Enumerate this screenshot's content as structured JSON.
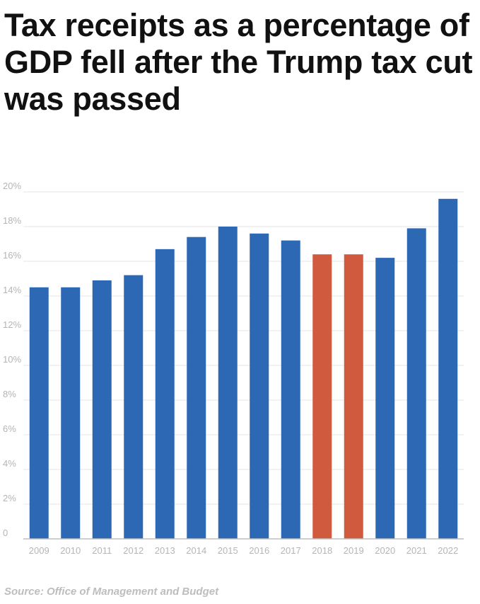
{
  "title": "Tax receipts as a percentage of GDP fell after the Trump tax cut was passed",
  "source": "Source: Office of Management and Budget",
  "colors": {
    "default_bar": "#2d68b5",
    "highlight_bar": "#d05a3e",
    "grid": "#e6e6e6",
    "axis": "#bfbfbf",
    "tick_text": "#b5b5b5"
  },
  "chart_data": {
    "type": "bar",
    "title": "Tax receipts as a percentage of GDP fell after the Trump tax cut was passed",
    "xlabel": "",
    "ylabel": "",
    "categories": [
      "2009",
      "2010",
      "2011",
      "2012",
      "2013",
      "2014",
      "2015",
      "2016",
      "2017",
      "2018",
      "2019",
      "2020",
      "2021",
      "2022"
    ],
    "values": [
      14.5,
      14.5,
      14.9,
      15.2,
      16.7,
      17.4,
      18.0,
      17.6,
      17.2,
      16.4,
      16.4,
      16.2,
      17.9,
      19.6
    ],
    "highlighted": [
      "2018",
      "2019"
    ],
    "ylim": [
      0,
      20
    ],
    "yticks": [
      0,
      2,
      4,
      6,
      8,
      10,
      12,
      14,
      16,
      18,
      20
    ],
    "ytick_labels": [
      "0",
      "2%",
      "4%",
      "6%",
      "8%",
      "10%",
      "12%",
      "14%",
      "16%",
      "18%",
      "20%"
    ],
    "grid": true
  }
}
